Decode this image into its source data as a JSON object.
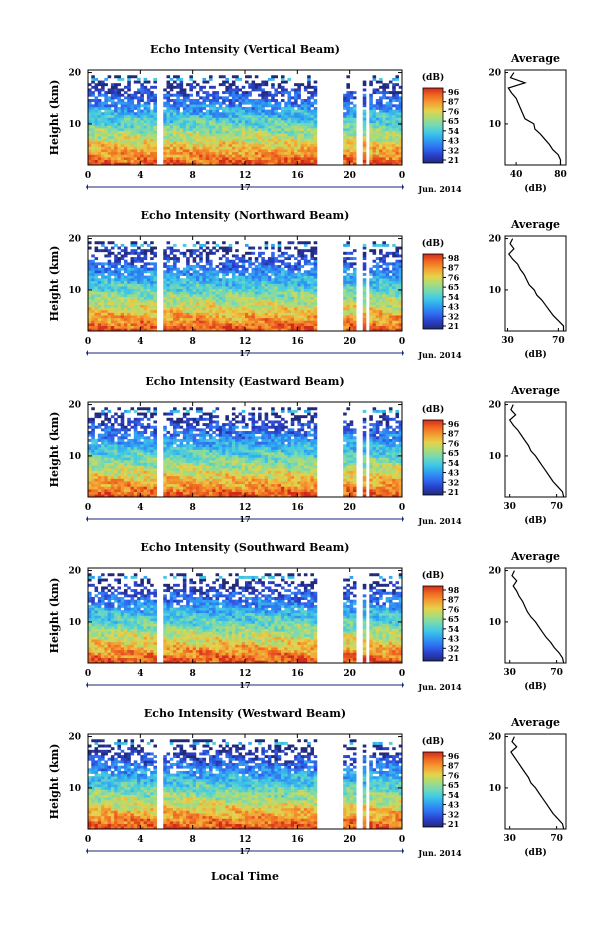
{
  "figure": {
    "xlabel": "Local Time",
    "date_label": "Jun. 2014",
    "day_label": "17",
    "ylabel": "Height (km)",
    "x_ticks": [
      "0",
      "4",
      "8",
      "12",
      "16",
      "20",
      "0"
    ],
    "y_ticks": [
      "20",
      "10"
    ],
    "cbar_unit": "(dB)",
    "avg_title": "Average",
    "avg_xlabel": "(dB)"
  },
  "colors": {
    "colormap": [
      "#202a78",
      "#2a3fc8",
      "#2f6cf0",
      "#2f9cf2",
      "#3fc8e6",
      "#72d8b8",
      "#a8dc7a",
      "#e6d24a",
      "#f4a032",
      "#f06a22",
      "#d22a1a"
    ],
    "axis": "#000000",
    "axis_day": "#1a237e"
  },
  "panels": [
    {
      "title": "Echo Intensity (Vertical Beam)",
      "cbar_ticks": [
        "96",
        "87",
        "76",
        "65",
        "54",
        "43",
        "32",
        "21"
      ],
      "avg_xticks": [
        "40",
        "80"
      ]
    },
    {
      "title": "Echo Intensity (Northward Beam)",
      "cbar_ticks": [
        "98",
        "87",
        "76",
        "65",
        "54",
        "43",
        "32",
        "21"
      ],
      "avg_xticks": [
        "30",
        "70"
      ]
    },
    {
      "title": "Echo Intensity (Eastward Beam)",
      "cbar_ticks": [
        "96",
        "87",
        "76",
        "65",
        "54",
        "43",
        "32",
        "21"
      ],
      "avg_xticks": [
        "30",
        "70"
      ]
    },
    {
      "title": "Echo Intensity (Southward Beam)",
      "cbar_ticks": [
        "98",
        "87",
        "76",
        "65",
        "54",
        "43",
        "32",
        "21"
      ],
      "avg_xticks": [
        "30",
        "70"
      ]
    },
    {
      "title": "Echo Intensity (Westward Beam)",
      "cbar_ticks": [
        "96",
        "87",
        "76",
        "65",
        "54",
        "43",
        "32",
        "21"
      ],
      "avg_xticks": [
        "30",
        "70"
      ]
    }
  ],
  "chart_data": [
    {
      "type": "heatmap",
      "title": "Echo Intensity (Vertical Beam)",
      "xlabel": "Local Time",
      "ylabel": "Height (km)",
      "xlim": [
        0,
        24
      ],
      "ylim": [
        2,
        20.5
      ],
      "clim": [
        21,
        96
      ],
      "units": "dB",
      "no_data_hours": [
        [
          5.3,
          5.8
        ],
        [
          17.6,
          19.5
        ],
        [
          20.5,
          20.9
        ],
        [
          21.3,
          21.5
        ]
      ],
      "profile": {
        "type": "line",
        "title": "Average",
        "xlabel": "(dB)",
        "xlim": [
          30,
          85
        ],
        "height": [
          2,
          3,
          4,
          5,
          6,
          7,
          8,
          9,
          10,
          11,
          12,
          13,
          14,
          15,
          16,
          17,
          18,
          19,
          20
        ],
        "db": [
          80,
          80,
          78,
          73,
          70,
          66,
          62,
          57,
          56,
          48,
          46,
          44,
          42,
          40,
          36,
          33,
          48,
          35,
          38
        ]
      }
    },
    {
      "type": "heatmap",
      "title": "Echo Intensity (Northward Beam)",
      "xlabel": "Local Time",
      "ylabel": "Height (km)",
      "xlim": [
        0,
        24
      ],
      "ylim": [
        2,
        20.5
      ],
      "clim": [
        21,
        98
      ],
      "units": "dB",
      "no_data_hours": [
        [
          5.3,
          5.8
        ],
        [
          17.6,
          19.5
        ],
        [
          20.5,
          20.9
        ],
        [
          21.3,
          21.5
        ]
      ],
      "profile": {
        "type": "line",
        "title": "Average",
        "xlabel": "(dB)",
        "xlim": [
          28,
          76
        ],
        "height": [
          2,
          3,
          4,
          5,
          6,
          7,
          8,
          9,
          10,
          11,
          12,
          13,
          14,
          15,
          16,
          17,
          18,
          19,
          20
        ],
        "db": [
          74,
          74,
          70,
          66,
          63,
          60,
          57,
          53,
          51,
          47,
          45,
          43,
          40,
          38,
          34,
          31,
          35,
          32,
          34
        ]
      }
    },
    {
      "type": "heatmap",
      "title": "Echo Intensity (Eastward Beam)",
      "xlabel": "Local Time",
      "ylabel": "Height (km)",
      "xlim": [
        0,
        24
      ],
      "ylim": [
        2,
        20.5
      ],
      "clim": [
        21,
        96
      ],
      "units": "dB",
      "no_data_hours": [
        [
          5.3,
          5.8
        ],
        [
          17.6,
          19.5
        ],
        [
          20.5,
          20.9
        ],
        [
          21.3,
          21.5
        ]
      ],
      "profile": {
        "type": "line",
        "title": "Average",
        "xlabel": "(dB)",
        "xlim": [
          26,
          78
        ],
        "height": [
          2,
          3,
          4,
          5,
          6,
          7,
          8,
          9,
          10,
          11,
          12,
          13,
          14,
          15,
          16,
          17,
          18,
          19,
          20
        ],
        "db": [
          76,
          75,
          71,
          67,
          64,
          61,
          58,
          55,
          52,
          48,
          46,
          43,
          40,
          37,
          33,
          30,
          35,
          31,
          33
        ]
      }
    },
    {
      "type": "heatmap",
      "title": "Echo Intensity (Southward Beam)",
      "xlabel": "Local Time",
      "ylabel": "Height (km)",
      "xlim": [
        0,
        24
      ],
      "ylim": [
        2,
        20.5
      ],
      "clim": [
        21,
        98
      ],
      "units": "dB",
      "no_data_hours": [
        [
          5.3,
          5.8
        ],
        [
          17.6,
          19.5
        ],
        [
          20.5,
          20.9
        ],
        [
          21.3,
          21.5
        ]
      ],
      "profile": {
        "type": "line",
        "title": "Average",
        "xlabel": "(dB)",
        "xlim": [
          26,
          78
        ],
        "height": [
          2,
          3,
          4,
          5,
          6,
          7,
          8,
          9,
          10,
          11,
          12,
          13,
          14,
          15,
          16,
          17,
          18,
          19,
          20
        ],
        "db": [
          76,
          75,
          72,
          68,
          65,
          61,
          58,
          55,
          52,
          48,
          45,
          43,
          41,
          38,
          36,
          33,
          36,
          32,
          34
        ]
      }
    },
    {
      "type": "heatmap",
      "title": "Echo Intensity (Westward Beam)",
      "xlabel": "Local Time",
      "ylabel": "Height (km)",
      "xlim": [
        0,
        24
      ],
      "ylim": [
        2,
        20.5
      ],
      "clim": [
        21,
        96
      ],
      "units": "dB",
      "no_data_hours": [
        [
          5.3,
          5.8
        ],
        [
          17.6,
          19.5
        ],
        [
          20.5,
          20.9
        ],
        [
          21.3,
          21.5
        ]
      ],
      "profile": {
        "type": "line",
        "title": "Average",
        "xlabel": "(dB)",
        "xlim": [
          26,
          78
        ],
        "height": [
          2,
          3,
          4,
          5,
          6,
          7,
          8,
          9,
          10,
          11,
          12,
          13,
          14,
          15,
          16,
          17,
          18,
          19,
          20
        ],
        "db": [
          76,
          75,
          71,
          67,
          64,
          61,
          58,
          55,
          52,
          48,
          46,
          43,
          40,
          37,
          34,
          31,
          36,
          32,
          34
        ]
      }
    }
  ]
}
